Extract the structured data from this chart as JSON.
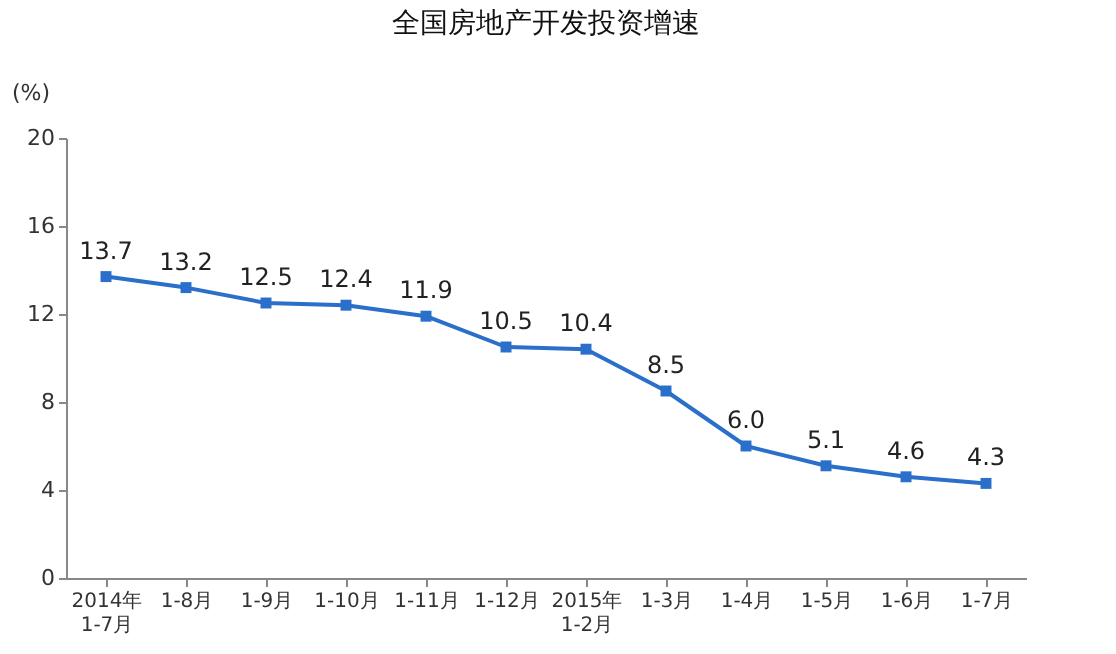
{
  "chart_data": {
    "type": "line",
    "title": "全国房地产开发投资增速",
    "ylabel": "(%)",
    "categories": [
      "2014年\n1-7月",
      "1-8月",
      "1-9月",
      "1-10月",
      "1-11月",
      "1-12月",
      "2015年\n1-2月",
      "1-3月",
      "1-4月",
      "1-5月",
      "1-6月",
      "1-7月"
    ],
    "series": [
      {
        "color": "#2a6fc9",
        "values": [
          13.7,
          13.2,
          12.5,
          12.4,
          11.9,
          10.5,
          10.4,
          8.5,
          6.0,
          5.1,
          4.6,
          4.3
        ],
        "value_labels": [
          "13.7",
          "13.2",
          "12.5",
          "12.4",
          "11.9",
          "10.5",
          "10.4",
          "8.5",
          "6.0",
          "5.1",
          "4.6",
          "4.3"
        ]
      }
    ],
    "ylim": [
      0,
      20
    ],
    "yticks": [
      0,
      4,
      8,
      12,
      16,
      20
    ],
    "grid": false,
    "marker": "square",
    "line_style": "solid",
    "data_labels": true
  }
}
